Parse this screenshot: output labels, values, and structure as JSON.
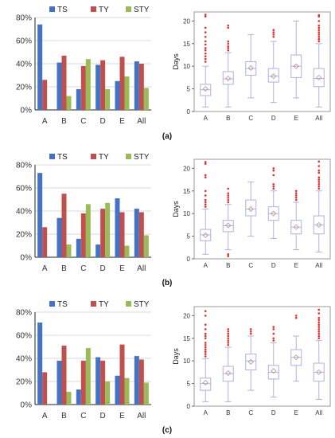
{
  "panels": [
    {
      "label": "(a)"
    },
    {
      "label": "(b)"
    },
    {
      "label": "(c)"
    }
  ],
  "colors": {
    "TS": "#4472c4",
    "TY": "#c0504d",
    "STY": "#9bbb59",
    "box": "#b0b0e0",
    "mean": "#c09090",
    "outlier": "#e03030"
  },
  "chart_data": [
    {
      "type": "bar",
      "panel": "a",
      "categories": [
        "A",
        "B",
        "C",
        "D",
        "E",
        "All"
      ],
      "series": [
        {
          "name": "TS",
          "values": [
            74,
            41,
            18,
            39,
            25,
            42
          ]
        },
        {
          "name": "TY",
          "values": [
            26,
            47,
            38,
            43,
            46,
            40
          ]
        },
        {
          "name": "STY",
          "values": [
            0,
            12,
            44,
            18,
            29,
            19
          ]
        }
      ],
      "ylim": [
        0,
        80
      ],
      "yticks": [
        "0%",
        "20%",
        "40%",
        "60%",
        "80%"
      ],
      "legend": "top"
    },
    {
      "type": "box",
      "panel": "a",
      "categories": [
        "A",
        "B",
        "C",
        "D",
        "E",
        "All"
      ],
      "ylabel": "Days",
      "ylim": [
        0,
        22
      ],
      "yticks": [
        "0",
        "5",
        "10",
        "15",
        "20"
      ],
      "boxes": [
        {
          "whisker_low": 1,
          "q1": 3.5,
          "median": 4.8,
          "q3": 6,
          "whisker_high": 10,
          "mean": 5,
          "outliers": [
            11,
            11.6,
            12.2,
            12.8,
            13.5,
            14,
            14.8,
            15.5,
            16.5,
            17.5,
            18.5,
            21,
            21.4
          ]
        },
        {
          "whisker_low": 1,
          "q1": 6,
          "median": 7.2,
          "q3": 8.8,
          "whisker_high": 13,
          "mean": 7.3,
          "outliers": [
            13.5,
            14,
            14.4,
            15,
            15.5,
            18.5,
            19
          ]
        },
        {
          "whisker_low": 3,
          "q1": 8,
          "median": 9.5,
          "q3": 11,
          "whisker_high": 17,
          "mean": 9.6,
          "outliers": []
        },
        {
          "whisker_low": 2,
          "q1": 6.5,
          "median": 7.8,
          "q3": 9.5,
          "whisker_high": 15.5,
          "mean": 7.8,
          "outliers": [
            16.5,
            17,
            17.5,
            18
          ]
        },
        {
          "whisker_low": 3,
          "q1": 7.5,
          "median": 10,
          "q3": 12.5,
          "whisker_high": 20,
          "mean": 10,
          "outliers": []
        },
        {
          "whisker_low": 1,
          "q1": 5.5,
          "median": 7.3,
          "q3": 9.5,
          "whisker_high": 15,
          "mean": 7.5,
          "outliers": [
            15.5,
            16,
            16.5,
            17,
            17.5,
            18,
            18.5,
            19,
            20,
            21,
            21.3
          ]
        }
      ]
    },
    {
      "type": "bar",
      "panel": "b",
      "categories": [
        "A",
        "B",
        "C",
        "D",
        "E",
        "All"
      ],
      "series": [
        {
          "name": "TS",
          "values": [
            73,
            34,
            16,
            11,
            51,
            42
          ]
        },
        {
          "name": "TY",
          "values": [
            26,
            55,
            38,
            42,
            39,
            39
          ]
        },
        {
          "name": "STY",
          "values": [
            0,
            11,
            46,
            47,
            10,
            19
          ]
        }
      ],
      "ylim": [
        0,
        80
      ],
      "yticks": [
        "0%",
        "20%",
        "40%",
        "60%",
        "80%"
      ],
      "legend": "top"
    },
    {
      "type": "box",
      "panel": "b",
      "categories": [
        "A",
        "B",
        "C",
        "D",
        "E",
        "All"
      ],
      "ylabel": "Days",
      "ylim": [
        0,
        22
      ],
      "yticks": [
        "0",
        "5",
        "10",
        "15",
        "20"
      ],
      "boxes": [
        {
          "whisker_low": 1,
          "q1": 4,
          "median": 5.3,
          "q3": 6.5,
          "whisker_high": 11,
          "mean": 5.2,
          "outliers": [
            11.5,
            12,
            12.5,
            13,
            14,
            15,
            18,
            18.5,
            21,
            21.4
          ]
        },
        {
          "whisker_low": 2,
          "q1": 6,
          "median": 7.3,
          "q3": 8.5,
          "whisker_high": 12,
          "mean": 7.4,
          "outliers": [
            1,
            0.6,
            12.5,
            13,
            13.5,
            14,
            14.5,
            15.5
          ]
        },
        {
          "whisker_low": 5,
          "q1": 9.5,
          "median": 11,
          "q3": 13,
          "whisker_high": 17,
          "mean": 11,
          "outliers": []
        },
        {
          "whisker_low": 4.5,
          "q1": 8.5,
          "median": 10,
          "q3": 11.5,
          "whisker_high": 15,
          "mean": 10,
          "outliers": [
            15.5,
            16,
            16.5,
            18.5,
            19.5,
            20
          ]
        },
        {
          "whisker_low": 2,
          "q1": 5.5,
          "median": 7,
          "q3": 8.5,
          "whisker_high": 12.5,
          "mean": 7,
          "outliers": [
            13,
            13.5,
            14,
            14.5,
            15
          ]
        },
        {
          "whisker_low": 1.5,
          "q1": 5.5,
          "median": 7.5,
          "q3": 9.5,
          "whisker_high": 15,
          "mean": 7.5,
          "outliers": [
            15.5,
            16,
            16.5,
            17,
            17.5,
            18,
            19,
            19.5,
            20.5,
            21.5
          ]
        }
      ]
    },
    {
      "type": "bar",
      "panel": "c",
      "categories": [
        "A",
        "B",
        "C",
        "D",
        "E",
        "All"
      ],
      "series": [
        {
          "name": "TS",
          "values": [
            71,
            38,
            13,
            41,
            25,
            42
          ]
        },
        {
          "name": "TY",
          "values": [
            28,
            51,
            38,
            38,
            52,
            39
          ]
        },
        {
          "name": "STY",
          "values": [
            0,
            11,
            49,
            20,
            23,
            19
          ]
        }
      ],
      "ylim": [
        0,
        80
      ],
      "yticks": [
        "0%",
        "20%",
        "40%",
        "60%",
        "80%"
      ],
      "legend": "top"
    },
    {
      "type": "box",
      "panel": "c",
      "categories": [
        "A",
        "B",
        "C",
        "D",
        "E",
        "All"
      ],
      "ylabel": "Days",
      "ylim": [
        0,
        22
      ],
      "yticks": [
        "0",
        "5",
        "10",
        "15",
        "20"
      ],
      "boxes": [
        {
          "whisker_low": 1,
          "q1": 3.5,
          "median": 5,
          "q3": 6.2,
          "whisker_high": 10.5,
          "mean": 5.2,
          "outliers": [
            11,
            11.5,
            12,
            12.5,
            13,
            13.5,
            14,
            15,
            15.5,
            16,
            17,
            18,
            20,
            21
          ]
        },
        {
          "whisker_low": 1,
          "q1": 5.5,
          "median": 7.2,
          "q3": 8.8,
          "whisker_high": 13,
          "mean": 7.3,
          "outliers": [
            13.5,
            14,
            14.5,
            15,
            15.5,
            16,
            16.5,
            17
          ]
        },
        {
          "whisker_low": 3.5,
          "q1": 8,
          "median": 10,
          "q3": 11.5,
          "whisker_high": 15.5,
          "mean": 9.8,
          "outliers": [
            16,
            16.5,
            17
          ]
        },
        {
          "whisker_low": 2,
          "q1": 6,
          "median": 7.5,
          "q3": 9,
          "whisker_high": 14,
          "mean": 7.8,
          "outliers": [
            14.5,
            15,
            16,
            17,
            17.5
          ]
        },
        {
          "whisker_low": 5.5,
          "q1": 9,
          "median": 10.8,
          "q3": 12.5,
          "whisker_high": 15.5,
          "mean": 10.8,
          "outliers": [
            19.5,
            20
          ]
        },
        {
          "whisker_low": 1.5,
          "q1": 5.5,
          "median": 7.5,
          "q3": 9.5,
          "whisker_high": 14.5,
          "mean": 7.5,
          "outliers": [
            15,
            15.5,
            16,
            16.5,
            17,
            17.5,
            18,
            18.5,
            19,
            19.5,
            20.5,
            21.3
          ]
        }
      ]
    }
  ]
}
